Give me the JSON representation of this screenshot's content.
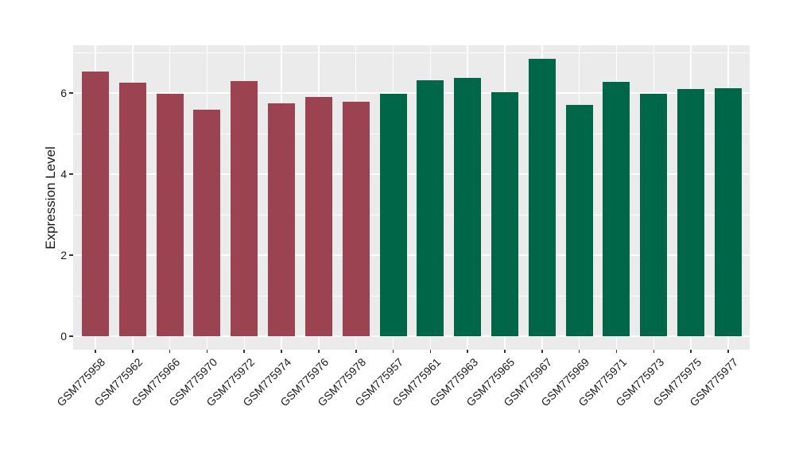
{
  "figure": {
    "background": "#FFFFFF",
    "panel_background": "#EBEBEB",
    "gridline_color": "#FFFFFF",
    "tick_color": "#333333",
    "text_color": "#1A1A1A"
  },
  "chart_data": {
    "type": "bar",
    "title": "",
    "xlabel": "",
    "ylabel": "Expression Level",
    "ylim": [
      0,
      7.2
    ],
    "yticks": [
      0,
      2,
      4,
      6
    ],
    "ytick_labels": [
      "0",
      "2",
      "4",
      "6"
    ],
    "grid": true,
    "legend_position": "none",
    "categories": [
      "GSM775958",
      "GSM775962",
      "GSM775966",
      "GSM775970",
      "GSM775972",
      "GSM775974",
      "GSM775976",
      "GSM775978",
      "GSM775957",
      "GSM775961",
      "GSM775963",
      "GSM775965",
      "GSM775967",
      "GSM775969",
      "GSM775971",
      "GSM775973",
      "GSM775975",
      "GSM775977"
    ],
    "values": [
      6.53,
      6.25,
      5.98,
      5.59,
      6.3,
      5.74,
      5.91,
      5.78,
      5.98,
      6.32,
      6.37,
      6.02,
      6.84,
      5.71,
      6.28,
      5.99,
      6.09,
      6.11
    ],
    "group_index": [
      0,
      0,
      0,
      0,
      0,
      0,
      0,
      0,
      1,
      1,
      1,
      1,
      1,
      1,
      1,
      1,
      1,
      1
    ],
    "group_colors": [
      "#9B4350",
      "#006648"
    ]
  }
}
